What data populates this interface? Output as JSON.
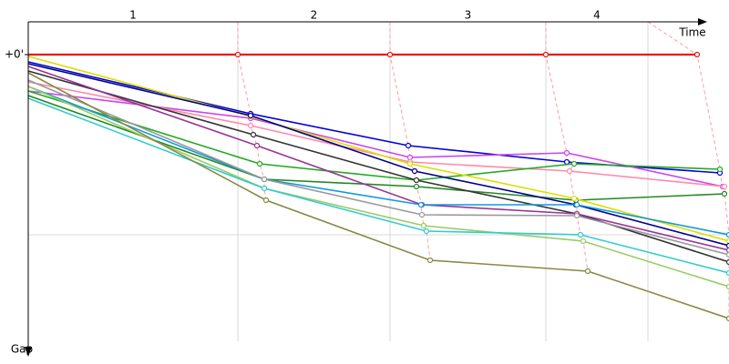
{
  "chart_data": {
    "type": "line",
    "x_label": "Time",
    "y_label": "Gap",
    "laps": [
      "1",
      "2",
      "3",
      "4"
    ],
    "lap_ends": [
      230,
      397,
      568,
      680
    ],
    "xlim": [
      0,
      745
    ],
    "ylim": [
      -36,
      315
    ],
    "yticks": [
      {
        "value": 0,
        "label": "+0'"
      }
    ],
    "grid_y": [
      198
    ],
    "series": [
      {
        "name": null,
        "color": "#ee1111",
        "x": [
          0,
          230,
          397,
          568,
          734
        ],
        "values": [
          0,
          0,
          0,
          0,
          0
        ]
      },
      {
        "name": null,
        "color": "#0000dd",
        "x": [
          0,
          244,
          417,
          591,
          759
        ],
        "values": [
          8,
          65,
          100,
          118,
          130
        ]
      },
      {
        "name": null,
        "color": "#cc44ee",
        "x": [
          0,
          244,
          419,
          591,
          762
        ],
        "values": [
          40,
          70,
          113,
          108,
          145
        ]
      },
      {
        "name": null,
        "color": "#ff88aa",
        "x": [
          0,
          244,
          419,
          594,
          764
        ],
        "values": [
          30,
          78,
          118,
          128,
          145
        ]
      },
      {
        "name": null,
        "color": "#22aa22",
        "x": [
          0,
          254,
          426,
          599,
          759
        ],
        "values": [
          40,
          120,
          138,
          120,
          126
        ]
      },
      {
        "name": null,
        "color": "#228822",
        "x": [
          0,
          259,
          426,
          601,
          764
        ],
        "values": [
          45,
          137,
          145,
          160,
          153
        ]
      },
      {
        "name": null,
        "color": "#dddd00",
        "x": [
          0,
          244,
          419,
          599,
          769
        ],
        "values": [
          2,
          68,
          120,
          158,
          205
        ]
      },
      {
        "name": null,
        "color": "#000088",
        "x": [
          0,
          244,
          424,
          601,
          769
        ],
        "values": [
          10,
          67,
          128,
          165,
          210
        ]
      },
      {
        "name": null,
        "color": "#333333",
        "x": [
          0,
          247,
          426,
          602,
          769
        ],
        "values": [
          18,
          88,
          138,
          175,
          228
        ]
      },
      {
        "name": null,
        "color": "#993399",
        "x": [
          0,
          251,
          432,
          602,
          769
        ],
        "values": [
          13,
          100,
          165,
          175,
          215
        ]
      },
      {
        "name": null,
        "color": "#1199dd",
        "x": [
          0,
          259,
          431,
          602,
          769
        ],
        "values": [
          35,
          137,
          165,
          165,
          198
        ]
      },
      {
        "name": null,
        "color": "#999999",
        "x": [
          0,
          259,
          432,
          602,
          769
        ],
        "values": [
          28,
          137,
          176,
          177,
          220
        ]
      },
      {
        "name": null,
        "color": "#99cc66",
        "x": [
          0,
          259,
          434,
          609,
          769
        ],
        "values": [
          35,
          147,
          188,
          205,
          255
        ]
      },
      {
        "name": null,
        "color": "#33cccc",
        "x": [
          0,
          259,
          437,
          606,
          769
        ],
        "values": [
          48,
          147,
          194,
          198,
          240
        ]
      },
      {
        "name": null,
        "color": "#888844",
        "x": [
          0,
          261,
          441,
          614,
          769
        ],
        "values": [
          20,
          160,
          226,
          238,
          290
        ]
      }
    ]
  }
}
